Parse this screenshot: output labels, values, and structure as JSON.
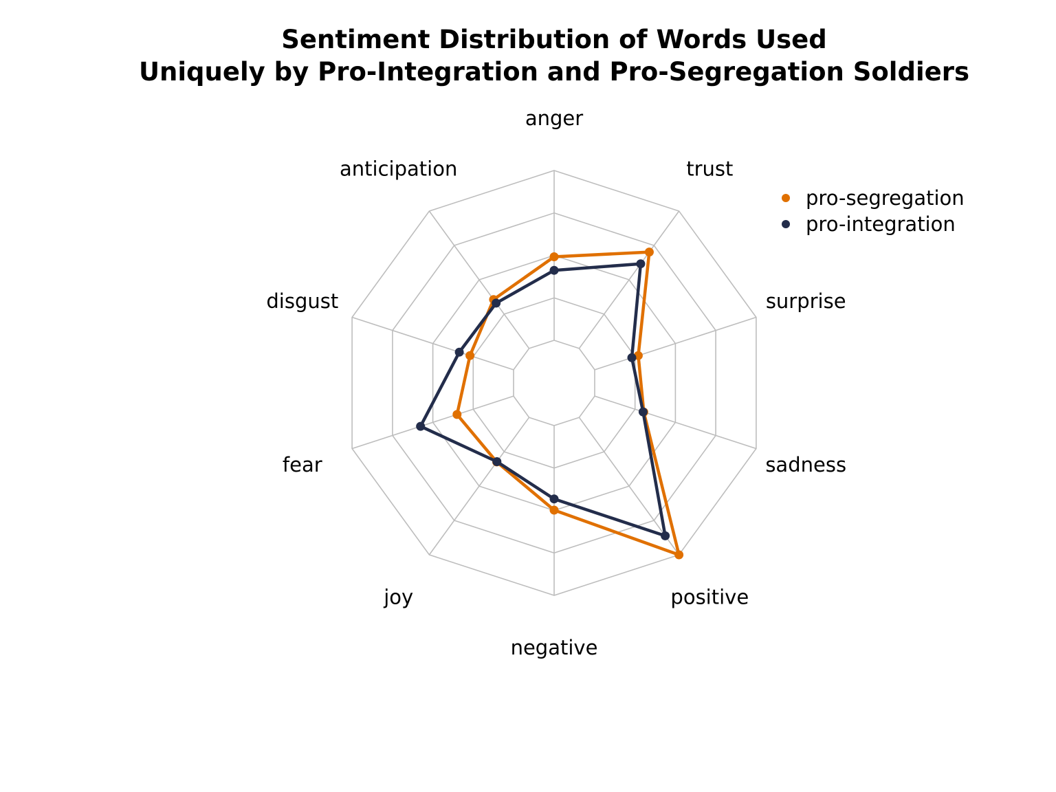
{
  "chart_data": {
    "type": "radar",
    "title_line1": "Sentiment Distribution of Words Used",
    "title_line2": "Uniquely by Pro-Integration and Pro-Segregation Soldiers",
    "categories": [
      "anger",
      "trust",
      "surprise",
      "sadness",
      "positive",
      "negative",
      "joy",
      "fear",
      "disgust",
      "anticipation"
    ],
    "rlim": [
      0,
      5
    ],
    "grid": true,
    "legend_position": "top-right",
    "series": [
      {
        "name": "pro-segregation",
        "color": "#E07000",
        "values": [
          2.46,
          3.51,
          1.35,
          1.52,
          5.0,
          2.49,
          1.62,
          1.75,
          1.35,
          1.78
        ]
      },
      {
        "name": "pro-integration",
        "color": "#232D4B",
        "values": [
          2.06,
          3.08,
          1.15,
          1.5,
          4.31,
          2.16,
          1.61,
          2.88,
          1.68,
          1.65
        ]
      }
    ]
  }
}
